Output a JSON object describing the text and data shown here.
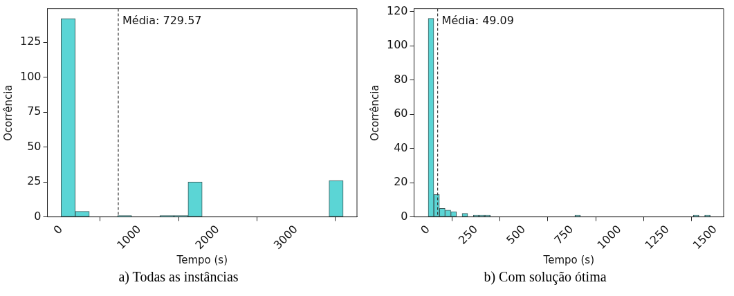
{
  "chart_data": [
    {
      "type": "histogram",
      "title": "a) Todas as instâncias",
      "xlabel": "Tempo (s)",
      "ylabel": "Ocorrência",
      "color": "#5bd5d5",
      "bins": [
        0,
        180,
        360,
        540,
        720,
        900,
        1080,
        1260,
        1440,
        1620,
        1800,
        1980,
        2160,
        2340,
        2520,
        2700,
        2880,
        3060,
        3240,
        3420,
        3600
      ],
      "values": [
        142,
        4,
        0,
        0,
        1,
        0,
        0,
        1,
        1,
        25,
        0,
        0,
        0,
        0,
        0,
        0,
        0,
        0,
        0,
        26
      ],
      "xlim": [
        -175,
        3776
      ],
      "ylim": [
        0,
        149
      ],
      "xticks": [
        0,
        1000,
        2000,
        3000
      ],
      "yticks": [
        0,
        25,
        50,
        75,
        100,
        125
      ],
      "ref_lines": [
        {
          "axis": "x",
          "value": 729.57,
          "label": "Média: 729.57",
          "line_style": "dashed"
        }
      ]
    },
    {
      "type": "histogram",
      "title": "b) Com solução ótima",
      "xlabel": "Tempo (s)",
      "ylabel": "Ocorrência",
      "color": "#5bd5d5",
      "bins": [
        0,
        29,
        59,
        88,
        118,
        147,
        177,
        206,
        236,
        265,
        295,
        324,
        354,
        383,
        412,
        442,
        471,
        501,
        530,
        560,
        589,
        619,
        648,
        678,
        707,
        737,
        766,
        795,
        825,
        854,
        884,
        913,
        943,
        972,
        1002,
        1031,
        1061,
        1090,
        1119,
        1149,
        1178,
        1208,
        1237,
        1267,
        1296,
        1326,
        1355,
        1385,
        1414,
        1444,
        1473
      ],
      "values": [
        116,
        13,
        5,
        4,
        3,
        0,
        2,
        0,
        1,
        1,
        1,
        0,
        0,
        0,
        0,
        0,
        0,
        0,
        0,
        0,
        0,
        0,
        0,
        0,
        0,
        0,
        1,
        0,
        0,
        0,
        0,
        0,
        0,
        0,
        0,
        0,
        0,
        0,
        0,
        0,
        0,
        0,
        0,
        0,
        0,
        0,
        0,
        1,
        0,
        1
      ],
      "xlim": [
        -74,
        1543
      ],
      "ylim": [
        0,
        121.6
      ],
      "xticks": [
        0,
        250,
        500,
        750,
        1000,
        1250,
        1500
      ],
      "yticks": [
        0,
        20,
        40,
        60,
        80,
        100,
        120
      ],
      "ref_lines": [
        {
          "axis": "x",
          "value": 49.09,
          "label": "Média: 49.09",
          "line_style": "dashed"
        }
      ]
    }
  ]
}
